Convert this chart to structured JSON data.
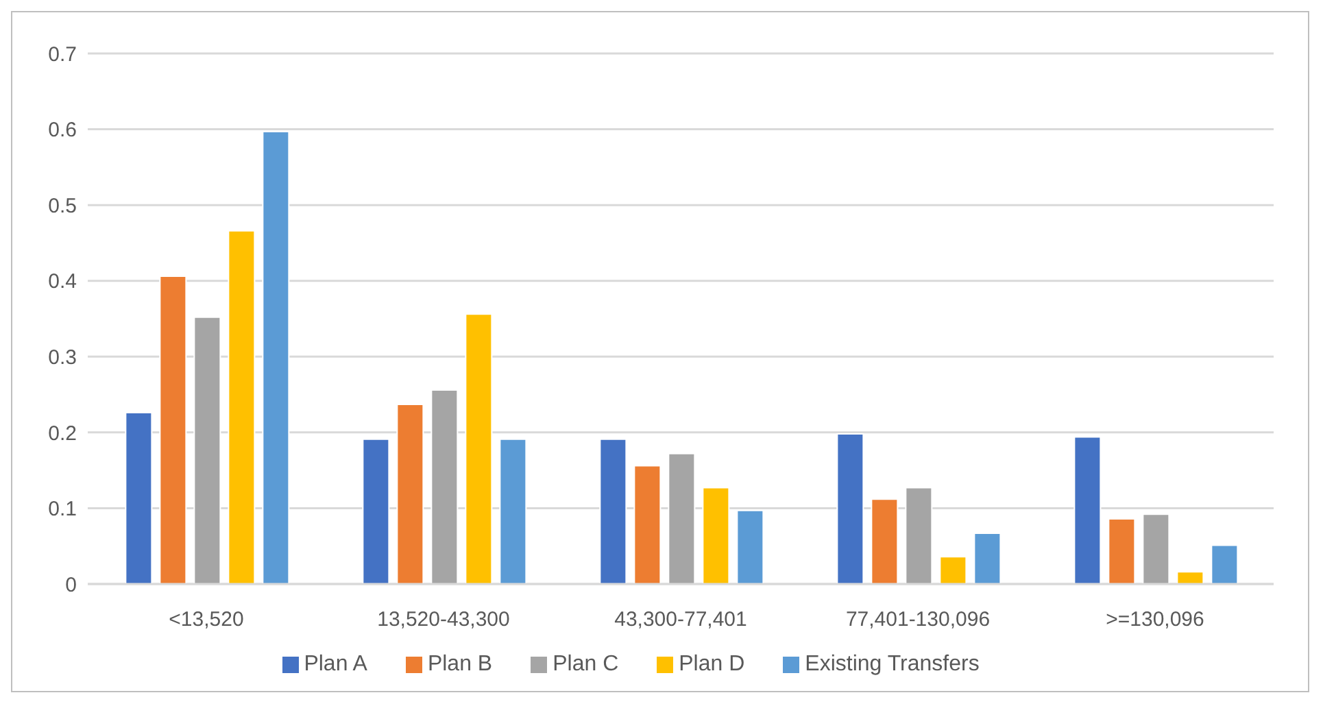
{
  "chart_data": {
    "type": "bar",
    "categories": [
      "<13,520",
      "13,520-43,300",
      "43,300-77,401",
      "77,401-130,096",
      ">=130,096"
    ],
    "series": [
      {
        "name": "Plan A",
        "color": "#4472c4",
        "values": [
          0.226,
          0.191,
          0.191,
          0.198,
          0.194
        ]
      },
      {
        "name": "Plan B",
        "color": "#ed7d31",
        "values": [
          0.406,
          0.237,
          0.156,
          0.112,
          0.086
        ]
      },
      {
        "name": "Plan C",
        "color": "#a5a5a5",
        "values": [
          0.352,
          0.256,
          0.172,
          0.127,
          0.092
        ]
      },
      {
        "name": "Plan D",
        "color": "#ffc000",
        "values": [
          0.466,
          0.356,
          0.127,
          0.036,
          0.016
        ]
      },
      {
        "name": "Existing Transfers",
        "color": "#5b9bd5",
        "values": [
          0.597,
          0.191,
          0.097,
          0.067,
          0.051
        ]
      }
    ],
    "ylim": [
      0,
      0.7
    ],
    "yticks": [
      0,
      0.1,
      0.2,
      0.3,
      0.4,
      0.5,
      0.6,
      0.7
    ],
    "grid": "y",
    "legend": "bottom"
  }
}
